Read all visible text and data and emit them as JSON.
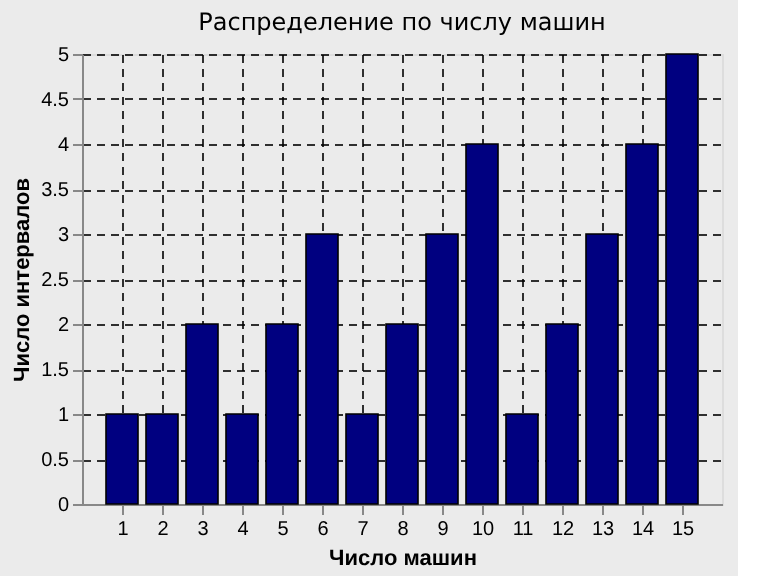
{
  "chart_data": {
    "type": "bar",
    "title": "Распределение по числу машин",
    "xlabel": "Число машин",
    "ylabel": "Число интервалов",
    "x": [
      1,
      2,
      3,
      4,
      5,
      6,
      7,
      8,
      9,
      10,
      11,
      12,
      13,
      14,
      15
    ],
    "values": [
      1,
      1,
      2,
      1,
      2,
      3,
      1,
      2,
      3,
      4,
      1,
      2,
      3,
      4,
      5
    ],
    "color": "#000080",
    "xlim": [
      0,
      16
    ],
    "xticks": [
      1,
      2,
      3,
      4,
      5,
      6,
      7,
      8,
      9,
      10,
      11,
      12,
      13,
      14,
      15
    ],
    "ylim": [
      0,
      5
    ],
    "yticks": [
      0,
      0.5,
      1,
      1.5,
      2,
      2.5,
      3,
      3.5,
      4,
      4.5,
      5
    ],
    "grid": true,
    "line_style": "dashed"
  }
}
